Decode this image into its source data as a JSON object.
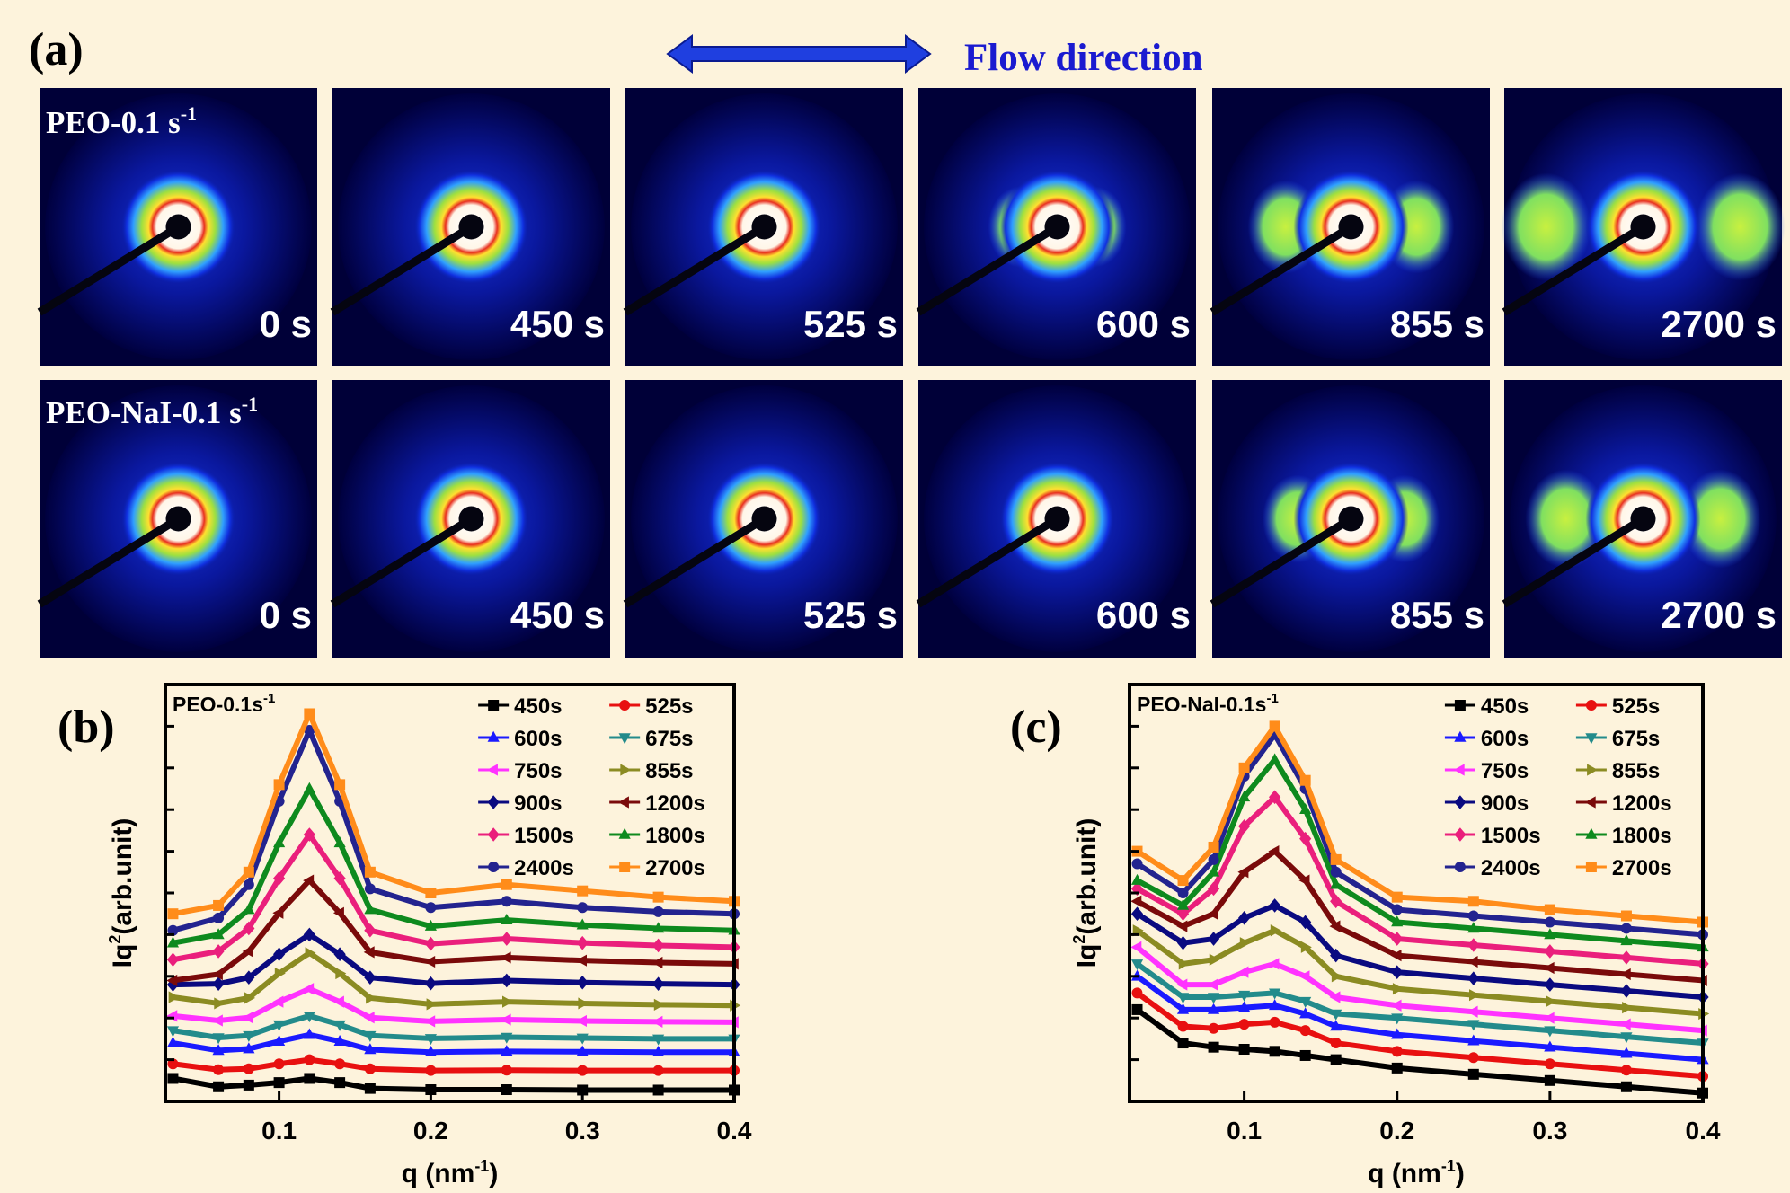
{
  "panel_a": {
    "label": "(a)",
    "flow_label": "Flow direction",
    "rows": [
      {
        "label": "PEO-0.1 s",
        "label_sup": "-1",
        "times": [
          "0 s",
          "450 s",
          "525 s",
          "600 s",
          "855 s",
          "2700 s"
        ]
      },
      {
        "label": "PEO-NaI-0.1 s",
        "label_sup": "-1",
        "times": [
          "0 s",
          "450 s",
          "525 s",
          "600 s",
          "855 s",
          "2700 s"
        ]
      }
    ]
  },
  "chart_data": [
    {
      "type": "line",
      "panel_label": "(b)",
      "title": "PEO-0.1s",
      "title_sup": "-1",
      "y_label": "Iq",
      "y_label_sup": "2",
      "y_label_end": "(arb.unit)",
      "x_label": "q (nm",
      "x_label_sup": "-1",
      "x_label_end": ")",
      "x": [
        0.03,
        0.06,
        0.08,
        0.1,
        0.12,
        0.14,
        0.16,
        0.2,
        0.25,
        0.3,
        0.35,
        0.4
      ],
      "xlim": [
        0.025,
        0.4
      ],
      "xticks": [
        0.1,
        0.2,
        0.3,
        0.4
      ],
      "ylim": [
        0,
        100
      ],
      "yticks": [
        0,
        10,
        20,
        30,
        40,
        50,
        60,
        70,
        80,
        90,
        100
      ],
      "legend": "upper right",
      "series": [
        {
          "name": "450s",
          "color": "#000000",
          "marker": "square",
          "values": [
            5.5,
            3.5,
            3.9,
            4.5,
            5.5,
            4.5,
            3.1,
            2.8,
            2.8,
            2.7,
            2.7,
            2.7
          ]
        },
        {
          "name": "525s",
          "color": "#e81010",
          "marker": "circle",
          "values": [
            9,
            7.6,
            7.8,
            9.0,
            10,
            9.0,
            7.8,
            7.4,
            7.5,
            7.4,
            7.4,
            7.4
          ]
        },
        {
          "name": "600s",
          "color": "#1a1aff",
          "marker": "triangle-up",
          "values": [
            14,
            12.2,
            12.6,
            14.4,
            16,
            14.4,
            12.4,
            11.8,
            12,
            11.9,
            11.8,
            11.8
          ]
        },
        {
          "name": "675s",
          "color": "#238b8b",
          "marker": "triangle-down",
          "values": [
            17,
            15.3,
            15.8,
            18.4,
            20.5,
            18.4,
            15.8,
            15.1,
            15.4,
            15.2,
            15,
            15
          ]
        },
        {
          "name": "750s",
          "color": "#ff33ff",
          "marker": "triangle-left",
          "values": [
            20.5,
            19.4,
            20.1,
            23.9,
            27,
            23.9,
            20.1,
            19.2,
            19.6,
            19.3,
            19.1,
            19
          ]
        },
        {
          "name": "855s",
          "color": "#8b8b22",
          "marker": "triangle-right",
          "values": [
            25,
            23.5,
            24.8,
            30.7,
            35.6,
            30.7,
            24.8,
            23.3,
            23.9,
            23.5,
            23.2,
            23
          ]
        },
        {
          "name": "900s",
          "color": "#0a0a80",
          "marker": "diamond",
          "values": [
            28,
            28.2,
            29.7,
            35.3,
            40,
            35.3,
            29.7,
            28.3,
            29,
            28.5,
            28.2,
            28
          ]
        },
        {
          "name": "1200s",
          "color": "#7a0a0a",
          "marker": "triangle-left",
          "values": [
            29,
            30.5,
            36,
            45.2,
            53,
            45.2,
            35.8,
            33.5,
            34.5,
            33.8,
            33.3,
            33
          ]
        },
        {
          "name": "1500s",
          "color": "#ea1f7c",
          "marker": "diamond",
          "values": [
            34,
            36,
            41.5,
            53.5,
            64,
            53.5,
            41,
            37.8,
            39,
            38,
            37.4,
            37
          ]
        },
        {
          "name": "1800s",
          "color": "#0e8a1e",
          "marker": "triangle-up",
          "values": [
            38,
            40,
            46,
            62,
            75,
            62,
            46,
            42,
            43.5,
            42.3,
            41.5,
            41
          ]
        },
        {
          "name": "2400s",
          "color": "#23238f",
          "marker": "circle",
          "values": [
            41,
            44,
            52,
            72,
            89,
            72,
            51,
            46.5,
            48,
            46.5,
            45.5,
            45
          ]
        },
        {
          "name": "2700s",
          "color": "#ff8c1a",
          "marker": "square",
          "values": [
            45,
            47,
            55,
            76,
            93,
            76,
            55,
            50,
            52,
            50.5,
            49,
            48
          ]
        }
      ]
    },
    {
      "type": "line",
      "panel_label": "(c)",
      "title": "PEO-NaI-0.1s",
      "title_sup": "-1",
      "y_label": "Iq",
      "y_label_sup": "2",
      "y_label_end": "(arb.unit)",
      "x_label": "q (nm",
      "x_label_sup": "-1",
      "x_label_end": ")",
      "x": [
        0.03,
        0.06,
        0.08,
        0.1,
        0.12,
        0.14,
        0.16,
        0.2,
        0.25,
        0.3,
        0.35,
        0.4
      ],
      "xlim": [
        0.025,
        0.4
      ],
      "xticks": [
        0.1,
        0.2,
        0.3,
        0.4
      ],
      "ylim": [
        0,
        100
      ],
      "yticks": [
        0,
        10,
        20,
        30,
        40,
        50,
        60,
        70,
        80,
        90,
        100
      ],
      "legend": "upper right",
      "series": [
        {
          "name": "450s",
          "color": "#000000",
          "marker": "square",
          "values": [
            22,
            14,
            13,
            12.5,
            12,
            11,
            10,
            8,
            6.5,
            5,
            3.5,
            2
          ]
        },
        {
          "name": "525s",
          "color": "#e81010",
          "marker": "circle",
          "values": [
            26,
            18,
            17.5,
            18.5,
            19,
            17,
            14,
            12,
            10.5,
            9,
            7.5,
            6
          ]
        },
        {
          "name": "600s",
          "color": "#1a1aff",
          "marker": "triangle-up",
          "values": [
            30,
            22,
            22,
            22.5,
            23,
            21,
            18,
            16,
            14.5,
            13,
            11.5,
            10
          ]
        },
        {
          "name": "675s",
          "color": "#238b8b",
          "marker": "triangle-down",
          "values": [
            33,
            25,
            25,
            25.5,
            26,
            24,
            21,
            20,
            18.5,
            17,
            15.5,
            14
          ]
        },
        {
          "name": "750s",
          "color": "#ff33ff",
          "marker": "triangle-left",
          "values": [
            37,
            28,
            28,
            31,
            33,
            30,
            25,
            23,
            21.5,
            20,
            18.5,
            17
          ]
        },
        {
          "name": "855s",
          "color": "#8b8b22",
          "marker": "triangle-right",
          "values": [
            41,
            33,
            34,
            38,
            41,
            37,
            30,
            27,
            25.5,
            24,
            22.5,
            21
          ]
        },
        {
          "name": "900s",
          "color": "#0a0a80",
          "marker": "diamond",
          "values": [
            45,
            38,
            39,
            44,
            47,
            43,
            35,
            31,
            29.5,
            28,
            26.5,
            25
          ]
        },
        {
          "name": "1200s",
          "color": "#7a0a0a",
          "marker": "triangle-left",
          "values": [
            48,
            42,
            45,
            55,
            60,
            53,
            42,
            35,
            33.5,
            32,
            30.5,
            29
          ]
        },
        {
          "name": "1500s",
          "color": "#ea1f7c",
          "marker": "diamond",
          "values": [
            51,
            45,
            51,
            66,
            73,
            63,
            48,
            39,
            37.5,
            36,
            34.5,
            33
          ]
        },
        {
          "name": "1800s",
          "color": "#0e8a1e",
          "marker": "triangle-up",
          "values": [
            53,
            47,
            55,
            73,
            82,
            70,
            52,
            43,
            41.5,
            40,
            38.5,
            37
          ]
        },
        {
          "name": "2400s",
          "color": "#23238f",
          "marker": "circle",
          "values": [
            57,
            50,
            58,
            78,
            88,
            75,
            55,
            46,
            44.5,
            43,
            41.5,
            40
          ]
        },
        {
          "name": "2700s",
          "color": "#ff8c1a",
          "marker": "square",
          "values": [
            60,
            53,
            61,
            80,
            90,
            77,
            58,
            49,
            48,
            46,
            44.5,
            43
          ]
        }
      ]
    }
  ]
}
